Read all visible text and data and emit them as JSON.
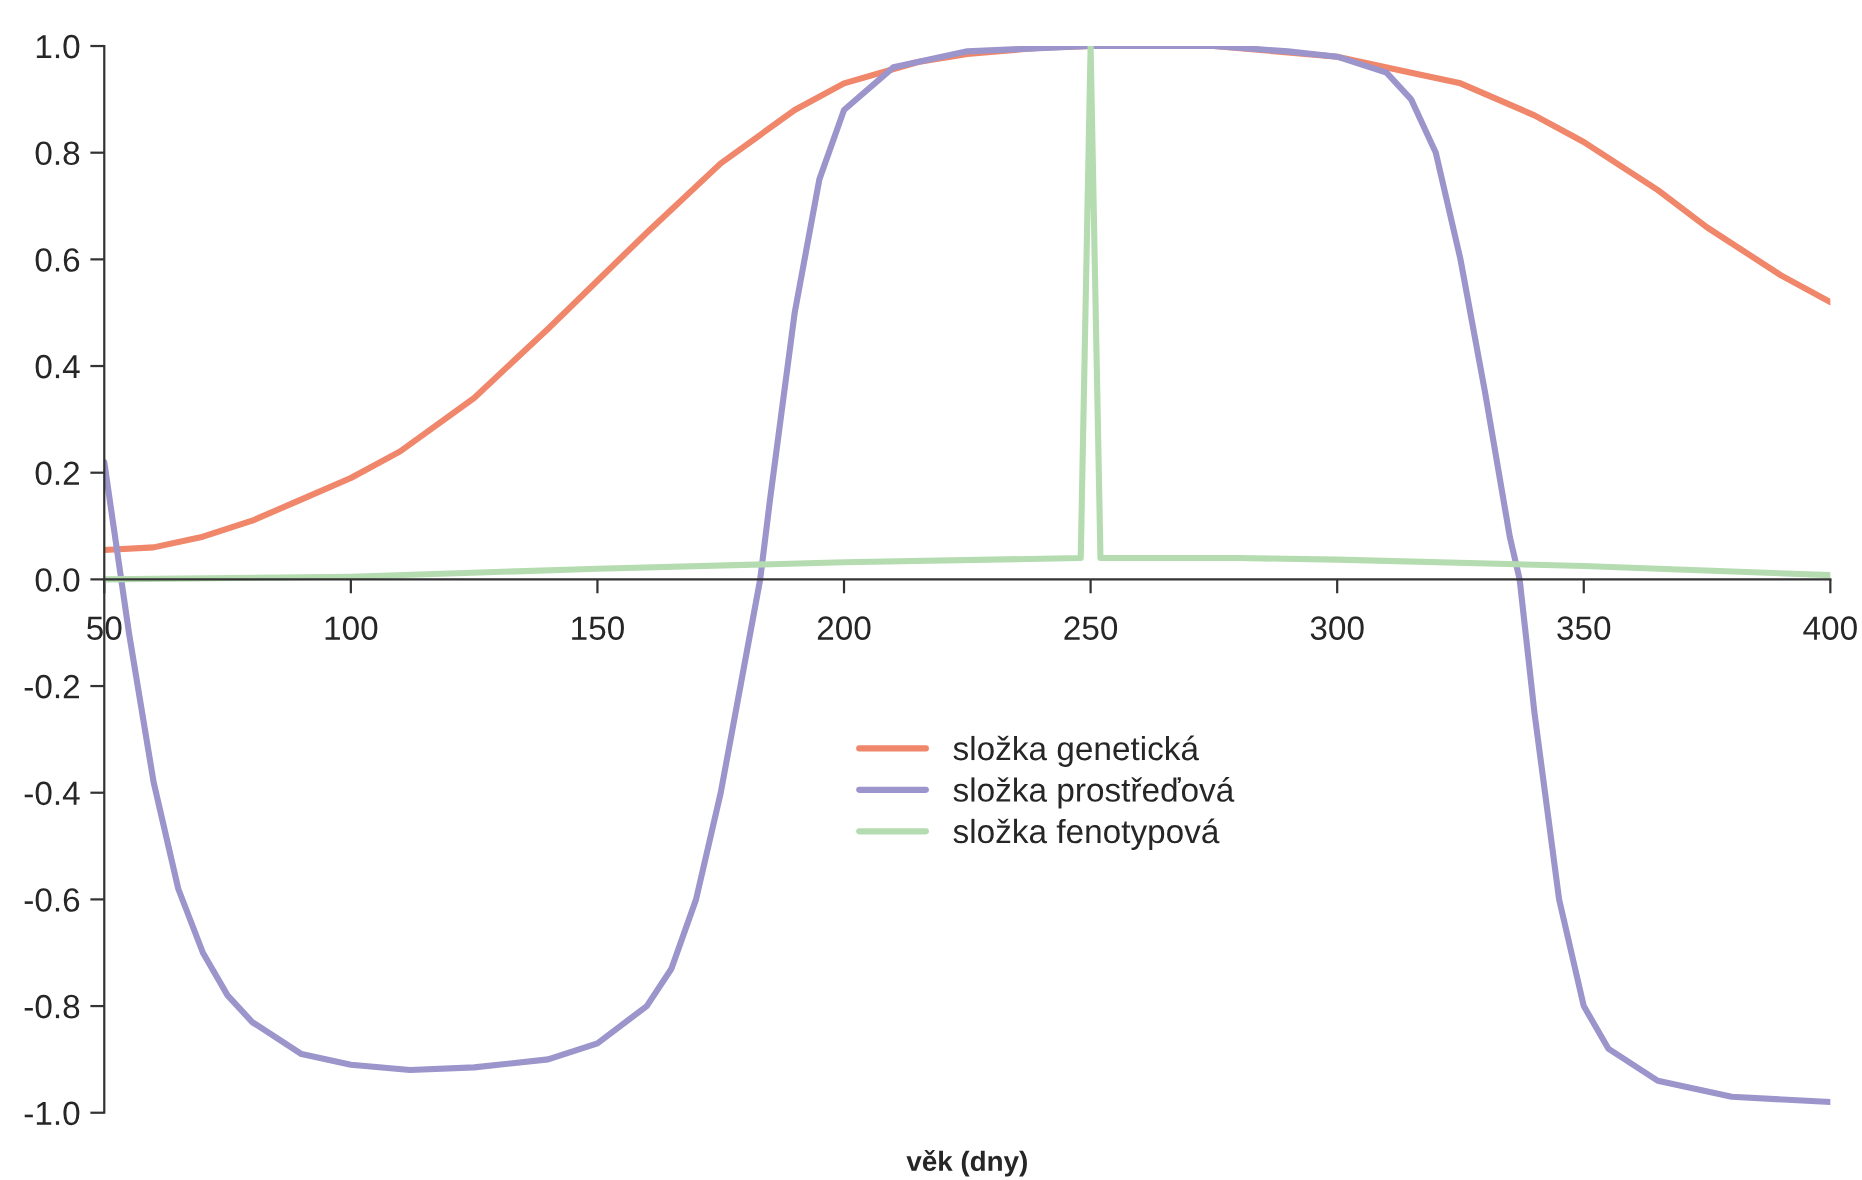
{
  "chart_data": {
    "type": "line",
    "xlabel": "věk (dny)",
    "xlim": [
      50,
      400
    ],
    "xticks": [
      50,
      100,
      150,
      200,
      250,
      300,
      350,
      400
    ],
    "ylim": [
      -1,
      1
    ],
    "yticks": [
      {
        "value": -1,
        "label": "-1.0"
      },
      {
        "value": -0.8,
        "label": "-0.8"
      },
      {
        "value": -0.6,
        "label": "-0.6"
      },
      {
        "value": -0.4,
        "label": "-0.4"
      },
      {
        "value": -0.2,
        "label": "-0.2"
      },
      {
        "value": 0,
        "label": "0.0"
      },
      {
        "value": 0.2,
        "label": "0.2"
      },
      {
        "value": 0.4,
        "label": "0.4"
      },
      {
        "value": 0.6,
        "label": "0.6"
      },
      {
        "value": 0.8,
        "label": "0.8"
      },
      {
        "value": 1,
        "label": "1.0"
      }
    ],
    "grid": false,
    "legend": "center",
    "marker": "none",
    "line_style": "solid",
    "series": [
      {
        "name": "složka genetická",
        "color": "#f0866a",
        "x": [
          50,
          60,
          70,
          80,
          90,
          100,
          110,
          125,
          140,
          150,
          160,
          175,
          190,
          200,
          215,
          225,
          240,
          250,
          275,
          300,
          315,
          325,
          340,
          350,
          365,
          375,
          390,
          400
        ],
        "values": [
          0.055,
          0.06,
          0.08,
          0.11,
          0.15,
          0.19,
          0.24,
          0.34,
          0.47,
          0.56,
          0.65,
          0.78,
          0.88,
          0.93,
          0.97,
          0.985,
          0.997,
          1.0,
          1.0,
          0.98,
          0.95,
          0.93,
          0.87,
          0.82,
          0.73,
          0.66,
          0.57,
          0.52
        ]
      },
      {
        "name": "složka prostřeďová",
        "color": "#9b95cc",
        "x": [
          50,
          55,
          60,
          65,
          70,
          75,
          80,
          90,
          100,
          112,
          125,
          140,
          150,
          160,
          165,
          170,
          175,
          180,
          183,
          185,
          190,
          195,
          200,
          210,
          225,
          250,
          275,
          290,
          300,
          310,
          315,
          320,
          325,
          330,
          335,
          337,
          340,
          345,
          350,
          355,
          365,
          380,
          400
        ],
        "values": [
          0.22,
          -0.1,
          -0.38,
          -0.58,
          -0.7,
          -0.78,
          -0.83,
          -0.89,
          -0.91,
          -0.92,
          -0.915,
          -0.9,
          -0.87,
          -0.8,
          -0.73,
          -0.6,
          -0.4,
          -0.15,
          0.0,
          0.15,
          0.5,
          0.75,
          0.88,
          0.96,
          0.99,
          1.0,
          1.0,
          0.99,
          0.98,
          0.95,
          0.9,
          0.8,
          0.6,
          0.35,
          0.08,
          0.0,
          -0.25,
          -0.6,
          -0.8,
          -0.88,
          -0.94,
          -0.97,
          -0.98
        ]
      },
      {
        "name": "složka fenotypová",
        "color": "#b5dcb0",
        "x": [
          50,
          100,
          150,
          200,
          248,
          250,
          252,
          280,
          300,
          350,
          400
        ],
        "values": [
          0.0,
          0.005,
          0.02,
          0.032,
          0.04,
          1.0,
          0.04,
          0.04,
          0.037,
          0.025,
          0.008
        ]
      }
    ]
  }
}
